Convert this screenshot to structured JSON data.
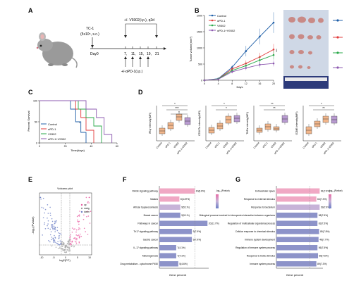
{
  "panel_labels": {
    "a": "A",
    "b": "B",
    "c": "C",
    "d": "D",
    "e": "E",
    "f": "F",
    "g": "G"
  },
  "colors": {
    "control": "#1f5fa8",
    "apd1": "#e23b3b",
    "v9302": "#2aa84a",
    "combo": "#8e5bb0",
    "box": "#f2b68b",
    "box_combo": "#b89ad0",
    "bar_pink": "#f0a8c4",
    "bar_blue": "#8d93c9",
    "bar_lav": "#c7b3d8"
  },
  "panel_a": {
    "cell_line": "TC-1",
    "dose": "(5x10⁵, s.c.)",
    "v9302_label": "+/- V9302(i.p.), q2d",
    "apd1_label": "+/-αPD-1(i.p.)",
    "day0": "Day0",
    "days": [
      "7,",
      "11,",
      "15,",
      "19,",
      "21"
    ]
  },
  "legend_groups": [
    "Control",
    "αPD-1",
    "V9302",
    "αPD-1+V9302"
  ],
  "panel_b": {
    "ylabel": "Tumor volume(mm³)",
    "xlabel": "Days",
    "sig": "***"
  },
  "panel_c": {
    "ylabel": "Percent Survival",
    "xlabel": "Time(days)",
    "sig": "*"
  },
  "panel_d": {
    "plots": [
      {
        "ylabel": "IFNγ intensity(MFI)",
        "sig": [
          "*",
          "***",
          "*"
        ]
      },
      {
        "ylabel": "CD107a intensity(MFI)",
        "sig": [
          "*",
          "*"
        ]
      },
      {
        "ylabel": "TNFα intensity(MFI)",
        "sig": [
          "**",
          "**"
        ]
      },
      {
        "ylabel": "GZMB intensity(MFI)",
        "sig": [
          "*",
          "**"
        ]
      }
    ],
    "xticks": [
      "Control",
      "αPD-1",
      "V9302",
      "αPD-1+V9302"
    ]
  },
  "panel_e": {
    "title": "Volcano plot",
    "xlabel": "log2(FC)",
    "ylabel": "-log₁₀(PValue)",
    "legend": [
      "up",
      "nosig",
      "down"
    ]
  },
  "panel_f": {
    "xlabel": "Gene percent",
    "legend_title": "-log₁₀(Pvalue)",
    "bars": [
      {
        "label": "RAGE signaling pathway",
        "value": "10(8.6%)"
      },
      {
        "label": "Malaria",
        "value": "8(4.87%)"
      },
      {
        "label": "African trypanosomiasis",
        "value": "9(5.1%)"
      },
      {
        "label": "Breast cancer",
        "value": "9(5.1%)"
      },
      {
        "label": "Pathways in cancer",
        "value": "20(11.7%)"
      },
      {
        "label": "Th17 signaling pathway",
        "value": "9(7.9%)"
      },
      {
        "label": "Gastric cancer",
        "value": "9(7.9%)"
      },
      {
        "label": "IL-17 signaling pathway",
        "value": "7(4.1%)"
      },
      {
        "label": "Melanogenesis",
        "value": "7(4.1%)"
      },
      {
        "label": "Drug metabolism - cytochrome P450",
        "value": "5(4.6%)"
      }
    ]
  },
  "panel_g": {
    "xlabel": "Gene percent",
    "legend_title": "-log₁₀(Pvalue)",
    "bars": [
      {
        "label": "Extracellular space",
        "value": "61(7.9%)"
      },
      {
        "label": "Response to external stimulus",
        "value": "64(7.3%)"
      },
      {
        "label": "Response to bacterium",
        "value": "39(7.9%)"
      },
      {
        "label": "Biological process involved in interspecies interaction between organisms",
        "value": "58(7.5%)"
      },
      {
        "label": "Regulation of multicellular organismal process",
        "value": "83(7.5%)"
      },
      {
        "label": "Cellular response to chemical stimulus",
        "value": "85(7.8%)"
      },
      {
        "label": "Immune system development",
        "value": "48(7.7%)"
      },
      {
        "label": "Regulation of immune system process",
        "value": "56(7.5%)"
      },
      {
        "label": "Response to biotic stimulus",
        "value": "58(7.6%)"
      },
      {
        "label": "Immune system process",
        "value": "89(7.3%)"
      }
    ]
  },
  "chart_data": [
    {
      "type": "line",
      "x": [
        0,
        4,
        8,
        12,
        16,
        20
      ],
      "xlabel": "Days",
      "ylabel": "Tumor volume(mm³)",
      "ylim": [
        0,
        2000
      ],
      "yticks": [
        0,
        500,
        1000,
        1500,
        2000
      ],
      "series": [
        {
          "name": "Control",
          "values": [
            0,
            50,
            400,
            900,
            1350,
            1780
          ]
        },
        {
          "name": "αPD-1",
          "values": [
            0,
            40,
            350,
            520,
            720,
            950
          ]
        },
        {
          "name": "V9302",
          "values": [
            0,
            40,
            300,
            450,
            620,
            780
          ]
        },
        {
          "name": "αPD-1+V9302",
          "values": [
            0,
            30,
            260,
            380,
            480,
            520
          ]
        }
      ]
    },
    {
      "type": "line",
      "x": [
        0,
        20,
        40,
        60
      ],
      "xlabel": "Time(days)",
      "ylabel": "Percent Survival",
      "ylim": [
        0,
        100
      ],
      "yticks": [
        0,
        50,
        100
      ],
      "series": [
        {
          "name": "Control",
          "steps": [
            [
              0,
              100
            ],
            [
              24,
              100
            ],
            [
              24,
              80
            ],
            [
              28,
              80
            ],
            [
              28,
              50
            ],
            [
              32,
              50
            ],
            [
              32,
              25
            ],
            [
              36,
              25
            ],
            [
              36,
              0
            ]
          ]
        },
        {
          "name": "αPD-1",
          "steps": [
            [
              0,
              100
            ],
            [
              28,
              100
            ],
            [
              28,
              80
            ],
            [
              32,
              80
            ],
            [
              32,
              60
            ],
            [
              36,
              60
            ],
            [
              36,
              30
            ],
            [
              42,
              30
            ],
            [
              42,
              0
            ]
          ]
        },
        {
          "name": "V9302",
          "steps": [
            [
              0,
              100
            ],
            [
              30,
              100
            ],
            [
              30,
              80
            ],
            [
              36,
              80
            ],
            [
              36,
              60
            ],
            [
              42,
              60
            ],
            [
              42,
              40
            ],
            [
              48,
              40
            ],
            [
              48,
              0
            ]
          ]
        },
        {
          "name": "αPD-1+V9302",
          "steps": [
            [
              0,
              100
            ],
            [
              36,
              100
            ],
            [
              36,
              80
            ],
            [
              44,
              80
            ],
            [
              44,
              60
            ],
            [
              50,
              60
            ],
            [
              50,
              20
            ],
            [
              56,
              20
            ],
            [
              56,
              0
            ]
          ]
        }
      ]
    },
    {
      "type": "bar",
      "categories": [
        "RAGE signaling pathway",
        "Malaria",
        "African trypanosomiasis",
        "Breast cancer",
        "Pathways in cancer",
        "Th17 signaling pathway",
        "Gastric cancer",
        "IL-17 signaling pathway",
        "Melanogenesis",
        "Drug metabolism - cytochrome P450"
      ],
      "values": [
        8.6,
        4.87,
        5.1,
        5.1,
        11.7,
        7.9,
        7.9,
        4.1,
        4.1,
        4.6
      ],
      "xlabel": "Gene percent"
    },
    {
      "type": "bar",
      "categories": [
        "Extracellular space",
        "Response to external stimulus",
        "Response to bacterium",
        "Biological process involved in interspecies interaction between organisms",
        "Regulation of multicellular organismal process",
        "Cellular response to chemical stimulus",
        "Immune system development",
        "Regulation of immune system process",
        "Response to biotic stimulus",
        "Immune system process"
      ],
      "values": [
        7.9,
        7.3,
        7.9,
        7.5,
        7.5,
        7.8,
        7.7,
        7.5,
        7.6,
        7.3
      ],
      "xlabel": "Gene percent"
    }
  ]
}
